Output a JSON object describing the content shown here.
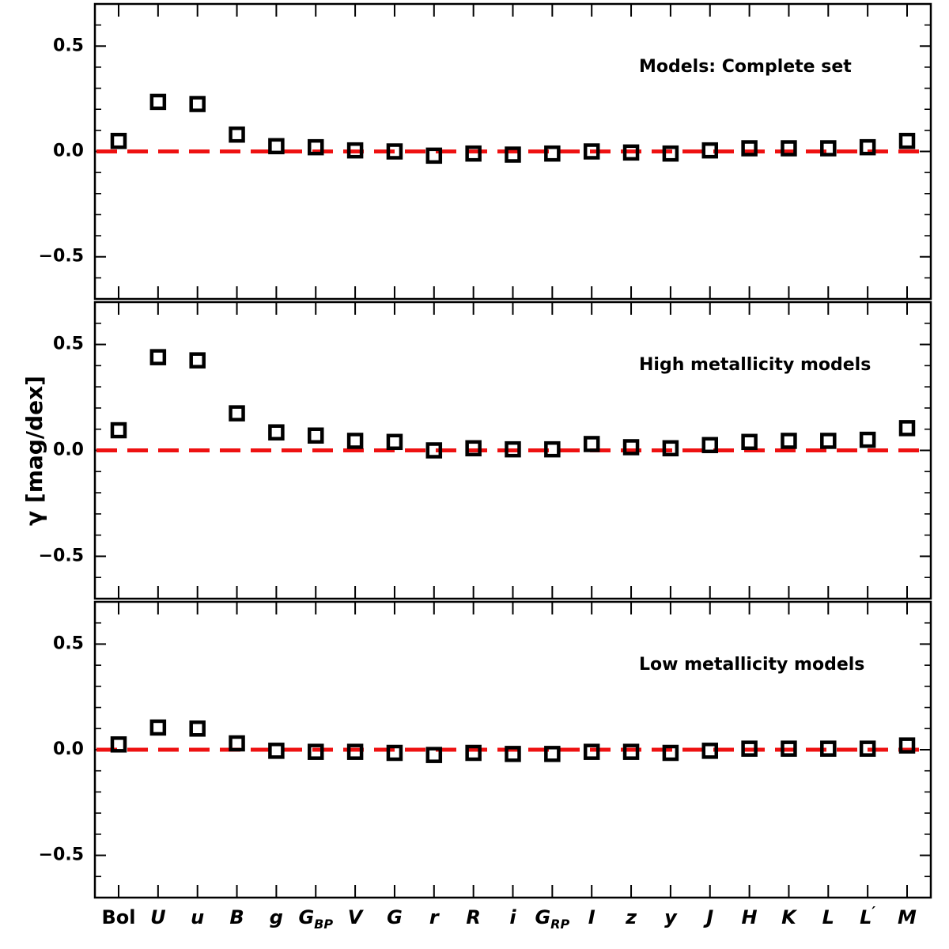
{
  "chart_data": {
    "type": "scatter",
    "ylabel": "γ [mag/dex]",
    "ylim": [
      -0.7,
      0.7
    ],
    "yticks": [
      -0.5,
      0.0,
      0.5
    ],
    "ytick_labels": [
      "−0.5",
      "0.0",
      "0.5"
    ],
    "reference_line": {
      "y": 0.0,
      "color": "#ee1111",
      "style": "dashed"
    },
    "marker": {
      "shape": "square",
      "fill": "none",
      "edge_color": "#000000"
    },
    "categories": [
      {
        "base": "Bol",
        "italic": false
      },
      {
        "base": "U",
        "italic": true
      },
      {
        "base": "u",
        "italic": true
      },
      {
        "base": "B",
        "italic": true
      },
      {
        "base": "g",
        "italic": true
      },
      {
        "base": "G",
        "sub": "BP",
        "italic": true
      },
      {
        "base": "V",
        "italic": true
      },
      {
        "base": "G",
        "italic": true
      },
      {
        "base": "r",
        "italic": true
      },
      {
        "base": "R",
        "italic": true
      },
      {
        "base": "i",
        "italic": true
      },
      {
        "base": "G",
        "sub": "RP",
        "italic": true
      },
      {
        "base": "I",
        "italic": true
      },
      {
        "base": "z",
        "italic": true
      },
      {
        "base": "y",
        "italic": true
      },
      {
        "base": "J",
        "italic": true
      },
      {
        "base": "H",
        "italic": true
      },
      {
        "base": "K",
        "italic": true
      },
      {
        "base": "L",
        "italic": true
      },
      {
        "base": "L",
        "sup": "′",
        "italic": true
      },
      {
        "base": "M",
        "italic": true
      }
    ],
    "panels": [
      {
        "annotation": "Models: Complete set",
        "values": [
          0.05,
          0.235,
          0.225,
          0.08,
          0.025,
          0.02,
          0.005,
          0.0,
          -0.02,
          -0.01,
          -0.015,
          -0.01,
          0.0,
          -0.005,
          -0.01,
          0.005,
          0.015,
          0.015,
          0.015,
          0.02,
          0.05
        ]
      },
      {
        "annotation": "High metallicity models",
        "values": [
          0.095,
          0.44,
          0.425,
          0.175,
          0.085,
          0.07,
          0.045,
          0.04,
          0.0,
          0.01,
          0.005,
          0.005,
          0.03,
          0.015,
          0.01,
          0.025,
          0.04,
          0.045,
          0.045,
          0.05,
          0.105
        ]
      },
      {
        "annotation": "Low metallicity models",
        "values": [
          0.025,
          0.105,
          0.1,
          0.03,
          -0.005,
          -0.01,
          -0.01,
          -0.015,
          -0.025,
          -0.015,
          -0.02,
          -0.02,
          -0.01,
          -0.01,
          -0.015,
          -0.005,
          0.005,
          0.005,
          0.005,
          0.005,
          0.02
        ]
      }
    ]
  }
}
